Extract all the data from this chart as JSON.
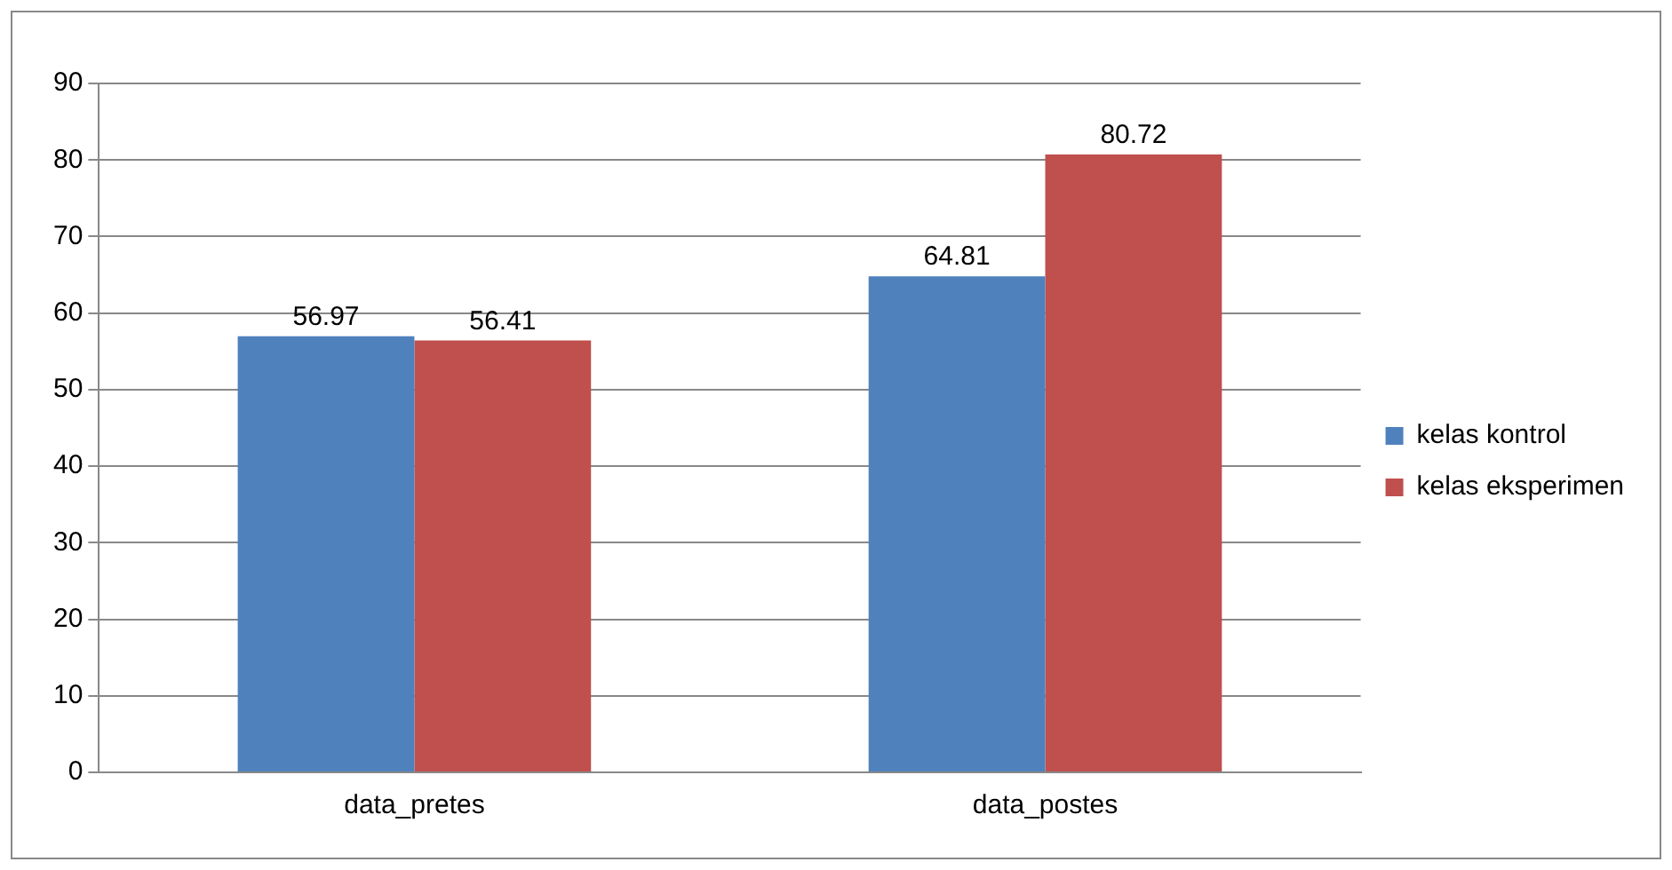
{
  "chart_data": {
    "type": "bar",
    "categories": [
      "data_pretes",
      "data_postes"
    ],
    "series": [
      {
        "name": "kelas kontrol",
        "color": "#4f81bd",
        "values": [
          56.97,
          64.81
        ]
      },
      {
        "name": "kelas eksperimen",
        "color": "#c0504d",
        "values": [
          56.41,
          80.72
        ]
      }
    ],
    "ylim": [
      0,
      90
    ],
    "yticks": [
      0,
      10,
      20,
      30,
      40,
      50,
      60,
      70,
      80,
      90
    ],
    "grid": "y",
    "legend": "right",
    "data_labels": true
  }
}
